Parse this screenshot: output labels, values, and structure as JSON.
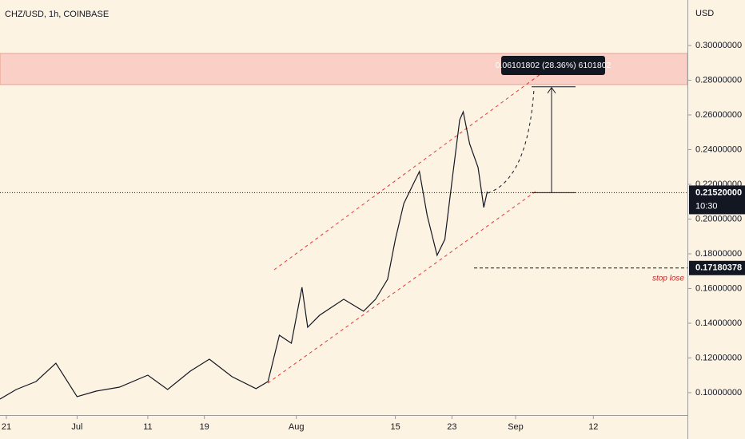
{
  "chart_data": {
    "type": "line",
    "title": "CHZ/USD, 1h, COINBASE",
    "y_axis_label": "USD",
    "color": "#131722",
    "x": [
      -0.9,
      1.4,
      4.2,
      7,
      10,
      12.7,
      16,
      20,
      22.8,
      26,
      28.7,
      31.9,
      35.3,
      37,
      38.6,
      40.3,
      41.8,
      42.6,
      44.3,
      47.7,
      50.5,
      52.2,
      53.9,
      55,
      56.2,
      57.3,
      58.4,
      59.5,
      60.9,
      62,
      63.1,
      64.1,
      64.6,
      65.5,
      66.7,
      67.5,
      68
    ],
    "values": [
      0.0963,
      0.1018,
      0.1064,
      0.117,
      0.0977,
      0.1009,
      0.1032,
      0.1101,
      0.1018,
      0.1124,
      0.1193,
      0.1092,
      0.1023,
      0.1064,
      0.1331,
      0.1285,
      0.1607,
      0.1377,
      0.1446,
      0.1538,
      0.1469,
      0.1538,
      0.1653,
      0.1883,
      0.209,
      0.2182,
      0.2274,
      0.2021,
      0.1791,
      0.1883,
      0.2251,
      0.2572,
      0.2618,
      0.2434,
      0.2297,
      0.2067,
      0.2159
    ],
    "xlim": [
      -0.9,
      96.3
    ],
    "xticks": [
      {
        "value": 0,
        "label": "21"
      },
      {
        "value": 10,
        "label": "Jul"
      },
      {
        "value": 20,
        "label": "11"
      },
      {
        "value": 28,
        "label": "19"
      },
      {
        "value": 41,
        "label": "Aug"
      },
      {
        "value": 55,
        "label": "15"
      },
      {
        "value": 63,
        "label": "23"
      },
      {
        "value": 72,
        "label": "Sep"
      },
      {
        "value": 83,
        "label": "12"
      }
    ],
    "ylim": [
      0.0871,
      0.3262
    ],
    "yticks": [
      {
        "value": 0.1,
        "label": "0.10000000"
      },
      {
        "value": 0.12,
        "label": "0.12000000"
      },
      {
        "value": 0.14,
        "label": "0.14000000"
      },
      {
        "value": 0.16,
        "label": "0.16000000"
      },
      {
        "value": 0.18,
        "label": "0.18000000"
      },
      {
        "value": 0.2,
        "label": "0.20000000"
      },
      {
        "value": 0.22,
        "label": "0.22000000"
      },
      {
        "value": 0.24,
        "label": "0.24000000"
      },
      {
        "value": 0.26,
        "label": "0.26000000"
      },
      {
        "value": 0.28,
        "label": "0.28000000"
      },
      {
        "value": 0.3,
        "label": "0.30000000"
      }
    ],
    "last_price": {
      "value": 0.2152,
      "label": "0.21520000"
    },
    "countdown": "10:30",
    "stop_level": 0.17180378,
    "stop_annotation": "stop lose",
    "target_zone": {
      "from": 0.2775,
      "to": 0.2954
    },
    "measure": {
      "from": 0.2152,
      "to": 0.2762,
      "label": "0.06101802 (28.36%) 6101802"
    }
  }
}
